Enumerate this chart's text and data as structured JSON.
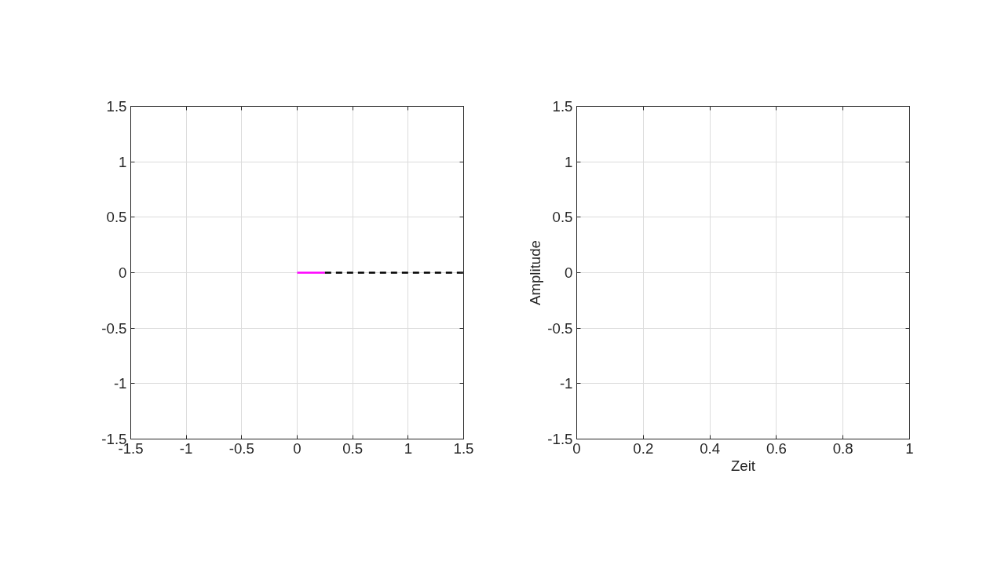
{
  "chart_data": [
    {
      "type": "line",
      "xlim": [
        -1.5,
        1.5
      ],
      "ylim": [
        -1.5,
        1.5
      ],
      "xticks": [
        -1.5,
        -1,
        -0.5,
        0,
        0.5,
        1,
        1.5
      ],
      "yticks": [
        -1.5,
        -1,
        -0.5,
        0,
        0.5,
        1,
        1.5
      ],
      "grid": true,
      "series": [
        {
          "x": [
            0,
            0.25
          ],
          "values": [
            0,
            0
          ],
          "color": "#ff00ff",
          "line_style": "solid"
        },
        {
          "x": [
            0.25,
            1.5
          ],
          "values": [
            0,
            0
          ],
          "color": "#000000",
          "line_style": "dashed"
        }
      ]
    },
    {
      "type": "line",
      "xlabel": "Zeit",
      "ylabel": "Amplitude",
      "xlim": [
        0,
        1
      ],
      "ylim": [
        -1.5,
        1.5
      ],
      "xticks": [
        0,
        0.2,
        0.4,
        0.6,
        0.8,
        1
      ],
      "yticks": [
        -1.5,
        -1,
        -0.5,
        0,
        0.5,
        1,
        1.5
      ],
      "grid": true
    }
  ]
}
